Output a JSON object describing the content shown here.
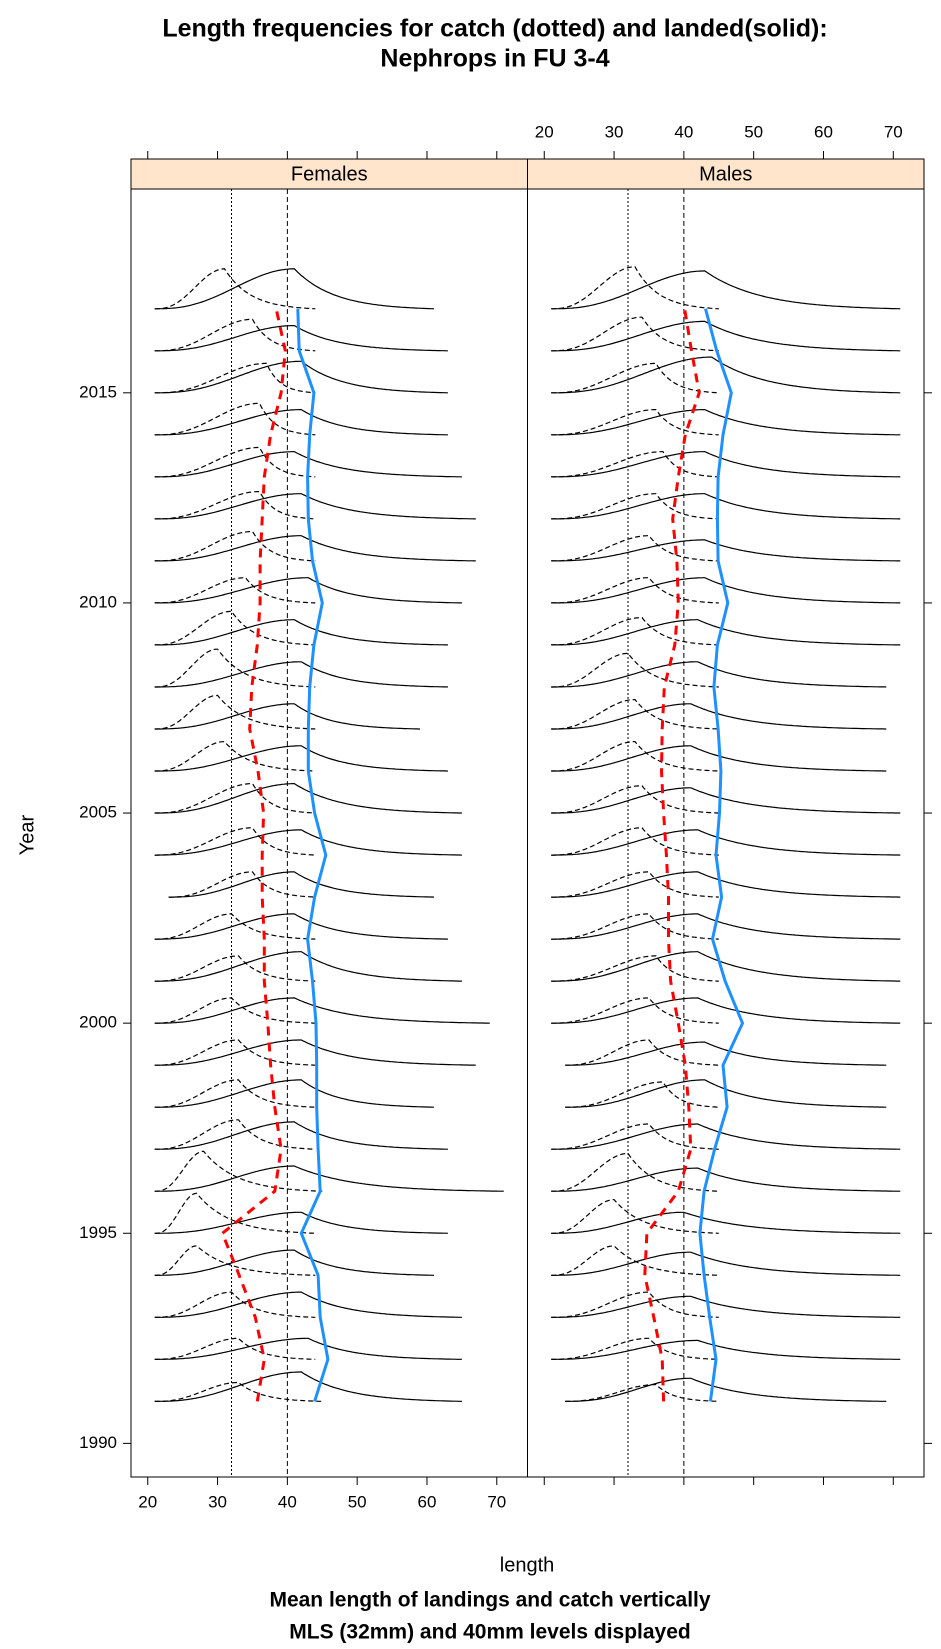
{
  "chart_data": {
    "type": "ridgeline",
    "title": [
      "Length frequencies for catch (dotted) and landed(solid):",
      "Nephrops in FU 3-4"
    ],
    "xlabel": "length",
    "ylabel": "Year",
    "subtitle": [
      "Mean length of landings and catch vertically",
      "MLS (32mm) and 40mm levels displayed"
    ],
    "xlim": [
      17.6,
      74.4
    ],
    "xticks": [
      20,
      30,
      40,
      50,
      60,
      70
    ],
    "ylim": [
      1989.2,
      2019.85
    ],
    "yticks": [
      1990,
      1995,
      2000,
      2005,
      2010,
      2015
    ],
    "reference_lines": [
      32,
      40
    ],
    "strip_color": "#ffe5cc",
    "landed_mean_color": "#1e90ff",
    "catch_mean_color": "#ff0000",
    "years": [
      1991,
      1992,
      1993,
      1994,
      1995,
      1996,
      1997,
      1998,
      1999,
      2000,
      2001,
      2002,
      2003,
      2004,
      2005,
      2006,
      2007,
      2008,
      2009,
      2010,
      2011,
      2012,
      2013,
      2014,
      2015,
      2016,
      2017
    ],
    "panels": [
      {
        "name": "Females",
        "landed_mean": [
          43.9,
          45.8,
          44.7,
          44.4,
          42.0,
          44.7,
          44.4,
          44.2,
          44.2,
          44.1,
          43.6,
          42.9,
          43.9,
          45.5,
          43.9,
          43.0,
          43.0,
          43.2,
          43.8,
          45.0,
          43.6,
          43.0,
          42.9,
          43.2,
          43.8,
          41.7,
          41.5
        ],
        "catch_mean": [
          35.7,
          36.7,
          35.4,
          33.1,
          30.7,
          38.2,
          39.1,
          38.2,
          37.6,
          37.2,
          36.7,
          36.7,
          36.4,
          36.4,
          36.6,
          35.8,
          34.6,
          34.9,
          35.7,
          36.1,
          36.1,
          36.4,
          36.7,
          37.6,
          39.1,
          39.7,
          38.4
        ],
        "landed": [
          [
            21,
            42,
            65,
            0.7
          ],
          [
            21,
            43,
            65,
            0.5
          ],
          [
            21,
            42,
            65,
            0.6
          ],
          [
            21,
            41,
            61,
            0.6
          ],
          [
            21,
            42,
            63,
            0.5
          ],
          [
            21,
            41,
            71,
            0.6
          ],
          [
            21,
            41,
            63,
            0.65
          ],
          [
            21,
            42,
            61,
            0.65
          ],
          [
            21,
            42,
            67,
            0.6
          ],
          [
            21,
            41,
            69,
            0.6
          ],
          [
            21,
            42,
            65,
            0.7
          ],
          [
            21,
            41,
            63,
            0.6
          ],
          [
            23,
            41,
            61,
            0.6
          ],
          [
            21,
            42,
            65,
            0.6
          ],
          [
            21,
            41,
            65,
            0.7
          ],
          [
            21,
            42,
            63,
            0.6
          ],
          [
            21,
            41,
            59,
            0.6
          ],
          [
            21,
            42,
            63,
            0.6
          ],
          [
            21,
            41,
            63,
            0.6
          ],
          [
            21,
            43,
            65,
            0.6
          ],
          [
            21,
            42,
            67,
            0.6
          ],
          [
            21,
            42,
            67,
            0.6
          ],
          [
            21,
            41,
            65,
            0.6
          ],
          [
            21,
            42,
            63,
            0.6
          ],
          [
            21,
            42,
            63,
            0.75
          ],
          [
            21,
            41,
            63,
            0.6
          ],
          [
            21,
            41,
            61,
            0.95
          ]
        ],
        "catch": [
          [
            21,
            33,
            45,
            0.45
          ],
          [
            21,
            33,
            44,
            0.5
          ],
          [
            21,
            32,
            44,
            0.6
          ],
          [
            21,
            27,
            44,
            0.7
          ],
          [
            21,
            27,
            44,
            0.95
          ],
          [
            21,
            28,
            45,
            0.95
          ],
          [
            21,
            33,
            44,
            0.7
          ],
          [
            21,
            33,
            44,
            0.65
          ],
          [
            21,
            33,
            44,
            0.6
          ],
          [
            21,
            32,
            44,
            0.6
          ],
          [
            21,
            33,
            44,
            0.6
          ],
          [
            21,
            32,
            44,
            0.6
          ],
          [
            23,
            35,
            44,
            0.6
          ],
          [
            21,
            35,
            44,
            0.65
          ],
          [
            21,
            35,
            44,
            0.7
          ],
          [
            21,
            31,
            44,
            0.7
          ],
          [
            21,
            30,
            44,
            0.8
          ],
          [
            21,
            30,
            44,
            0.9
          ],
          [
            21,
            32,
            44,
            0.8
          ],
          [
            21,
            34,
            44,
            0.6
          ],
          [
            21,
            35,
            44,
            0.7
          ],
          [
            21,
            36,
            44,
            0.65
          ],
          [
            21,
            36,
            44,
            0.7
          ],
          [
            21,
            36,
            44,
            0.75
          ],
          [
            21,
            37,
            44,
            0.7
          ],
          [
            21,
            35,
            44,
            0.75
          ],
          [
            21,
            31,
            44,
            0.95
          ]
        ]
      },
      {
        "name": "Males",
        "landed_mean": [
          43.8,
          44.6,
          43.7,
          42.9,
          42.3,
          42.9,
          44.4,
          46.2,
          45.6,
          48.4,
          45.9,
          44.1,
          45.4,
          44.6,
          45.1,
          45.3,
          44.9,
          44.3,
          44.8,
          46.3,
          44.9,
          44.8,
          44.9,
          45.6,
          46.8,
          44.7,
          43.1
        ],
        "catch_mean": [
          37.1,
          36.9,
          35.7,
          34.4,
          34.7,
          39.2,
          41.0,
          40.7,
          40.2,
          39.2,
          38.1,
          37.8,
          37.8,
          37.5,
          37.1,
          36.8,
          36.9,
          37.2,
          38.7,
          39.2,
          39.0,
          38.4,
          39.2,
          40.2,
          42.2,
          41.1,
          40.1
        ],
        "landed": [
          [
            23,
            41,
            69,
            0.55
          ],
          [
            21,
            42,
            71,
            0.45
          ],
          [
            21,
            41,
            71,
            0.5
          ],
          [
            21,
            41,
            71,
            0.55
          ],
          [
            21,
            40,
            71,
            0.5
          ],
          [
            21,
            42,
            71,
            0.55
          ],
          [
            21,
            42,
            71,
            0.6
          ],
          [
            23,
            43,
            69,
            0.65
          ],
          [
            23,
            43,
            69,
            0.55
          ],
          [
            21,
            42,
            71,
            0.6
          ],
          [
            21,
            42,
            71,
            0.7
          ],
          [
            21,
            42,
            71,
            0.6
          ],
          [
            21,
            42,
            71,
            0.6
          ],
          [
            21,
            42,
            71,
            0.6
          ],
          [
            21,
            41,
            71,
            0.6
          ],
          [
            21,
            41,
            69,
            0.6
          ],
          [
            21,
            41,
            69,
            0.6
          ],
          [
            21,
            42,
            69,
            0.6
          ],
          [
            21,
            42,
            71,
            0.6
          ],
          [
            21,
            43,
            71,
            0.6
          ],
          [
            21,
            43,
            71,
            0.5
          ],
          [
            21,
            43,
            71,
            0.6
          ],
          [
            21,
            43,
            71,
            0.6
          ],
          [
            21,
            43,
            71,
            0.6
          ],
          [
            21,
            44,
            71,
            0.85
          ],
          [
            21,
            43,
            71,
            0.7
          ],
          [
            21,
            43,
            71,
            0.9
          ]
        ],
        "catch": [
          [
            23,
            36,
            45,
            0.4
          ],
          [
            21,
            35,
            45,
            0.5
          ],
          [
            21,
            35,
            45,
            0.6
          ],
          [
            21,
            30,
            45,
            0.7
          ],
          [
            21,
            30,
            45,
            0.8
          ],
          [
            21,
            32,
            45,
            0.9
          ],
          [
            21,
            35,
            45,
            0.6
          ],
          [
            23,
            37,
            45,
            0.6
          ],
          [
            23,
            35,
            45,
            0.6
          ],
          [
            21,
            35,
            45,
            0.6
          ],
          [
            21,
            36,
            45,
            0.6
          ],
          [
            21,
            35,
            45,
            0.6
          ],
          [
            21,
            35,
            45,
            0.6
          ],
          [
            21,
            34,
            45,
            0.65
          ],
          [
            21,
            34,
            45,
            0.65
          ],
          [
            21,
            33,
            45,
            0.7
          ],
          [
            21,
            33,
            45,
            0.7
          ],
          [
            21,
            32,
            45,
            0.8
          ],
          [
            21,
            34,
            45,
            0.65
          ],
          [
            21,
            35,
            45,
            0.6
          ],
          [
            21,
            35,
            45,
            0.6
          ],
          [
            21,
            36,
            45,
            0.6
          ],
          [
            21,
            37,
            45,
            0.6
          ],
          [
            21,
            36,
            45,
            0.6
          ],
          [
            21,
            36,
            45,
            0.7
          ],
          [
            21,
            34,
            45,
            0.8
          ],
          [
            21,
            33,
            45,
            1.0
          ]
        ]
      }
    ]
  }
}
